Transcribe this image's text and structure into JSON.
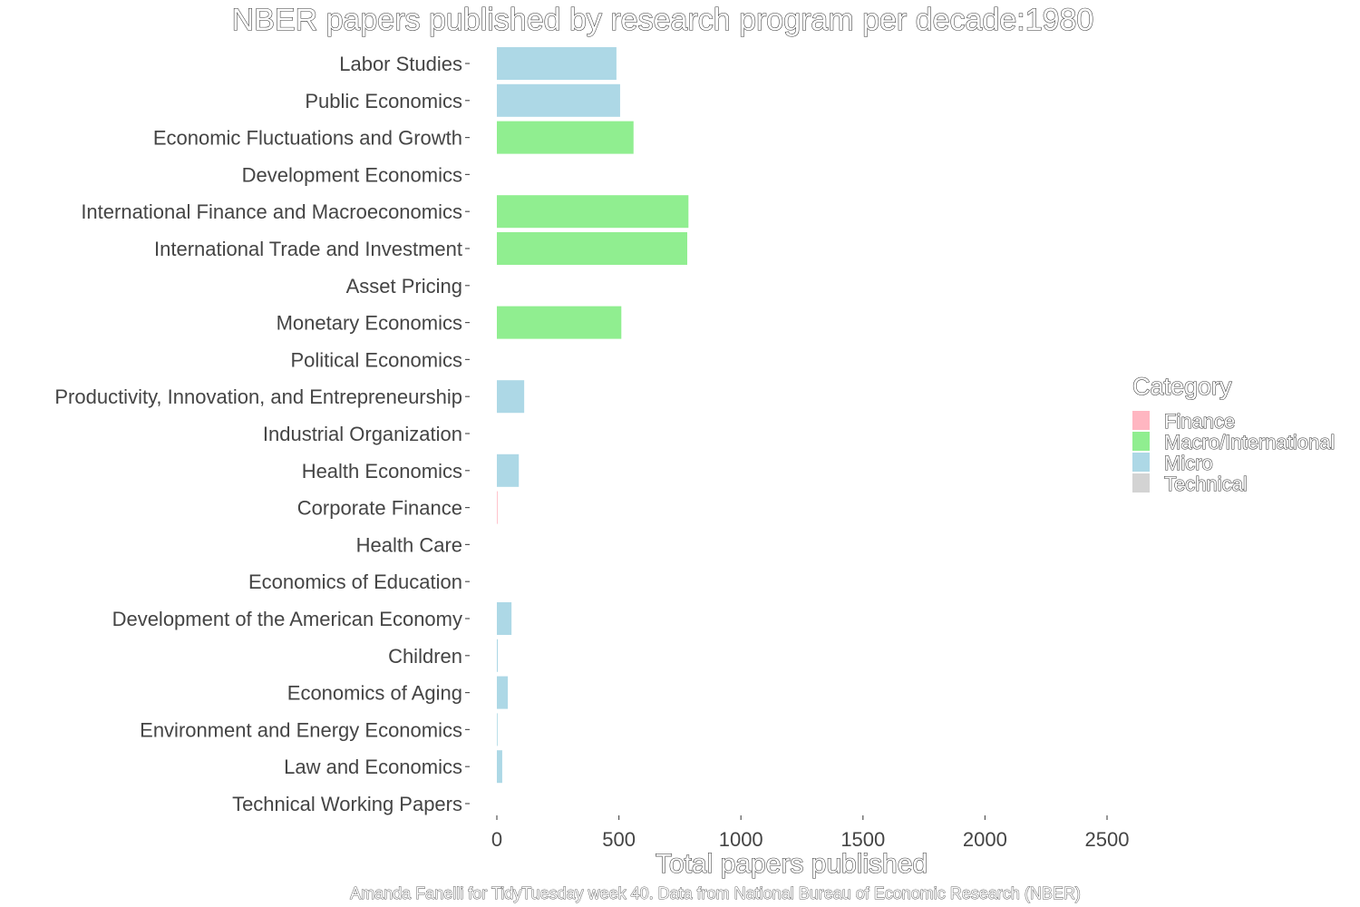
{
  "chart_data": {
    "type": "bar",
    "orientation": "horizontal",
    "title": "NBER papers published by research program per decade:1980",
    "xlabel": "Total papers published",
    "ylabel": "",
    "caption": "Amanda Fanelli for TidyTuesday week 40. Data from National Bureau of Economic Research (NBER)",
    "xlim": [
      0,
      2500
    ],
    "x_ticks": [
      0,
      500,
      1000,
      1500,
      2000,
      2500
    ],
    "grid": false,
    "legend": {
      "title": "Category",
      "position": "right",
      "entries": [
        {
          "label": "Finance",
          "color": "#FFB6C1"
        },
        {
          "label": "Macro/International",
          "color": "#90EE90"
        },
        {
          "label": "Micro",
          "color": "#ADD8E6"
        },
        {
          "label": "Technical",
          "color": "#D3D3D3"
        }
      ]
    },
    "bars": [
      {
        "program": "Labor Studies",
        "value": 490,
        "category": "Micro"
      },
      {
        "program": "Public Economics",
        "value": 505,
        "category": "Micro"
      },
      {
        "program": "Economic Fluctuations and Growth",
        "value": 560,
        "category": "Macro/International"
      },
      {
        "program": "Development Economics",
        "value": 0,
        "category": "Micro"
      },
      {
        "program": "International Finance and Macroeconomics",
        "value": 785,
        "category": "Macro/International"
      },
      {
        "program": "International Trade and Investment",
        "value": 780,
        "category": "Macro/International"
      },
      {
        "program": "Asset Pricing",
        "value": 0,
        "category": "Finance"
      },
      {
        "program": "Monetary Economics",
        "value": 510,
        "category": "Macro/International"
      },
      {
        "program": "Political Economics",
        "value": 0,
        "category": "Micro"
      },
      {
        "program": "Productivity, Innovation, and Entrepreneurship",
        "value": 112,
        "category": "Micro"
      },
      {
        "program": "Industrial Organization",
        "value": 0,
        "category": "Micro"
      },
      {
        "program": "Health Economics",
        "value": 90,
        "category": "Micro"
      },
      {
        "program": "Corporate Finance",
        "value": 3,
        "category": "Finance"
      },
      {
        "program": "Health Care",
        "value": 0,
        "category": "Micro"
      },
      {
        "program": "Economics of Education",
        "value": 0,
        "category": "Micro"
      },
      {
        "program": "Development of the American Economy",
        "value": 60,
        "category": "Micro"
      },
      {
        "program": "Children",
        "value": 4,
        "category": "Micro"
      },
      {
        "program": "Economics of Aging",
        "value": 45,
        "category": "Micro"
      },
      {
        "program": "Environment and Energy Economics",
        "value": 3,
        "category": "Micro"
      },
      {
        "program": "Law and Economics",
        "value": 22,
        "category": "Micro"
      },
      {
        "program": "Technical Working Papers",
        "value": 0,
        "category": "Technical"
      }
    ]
  }
}
